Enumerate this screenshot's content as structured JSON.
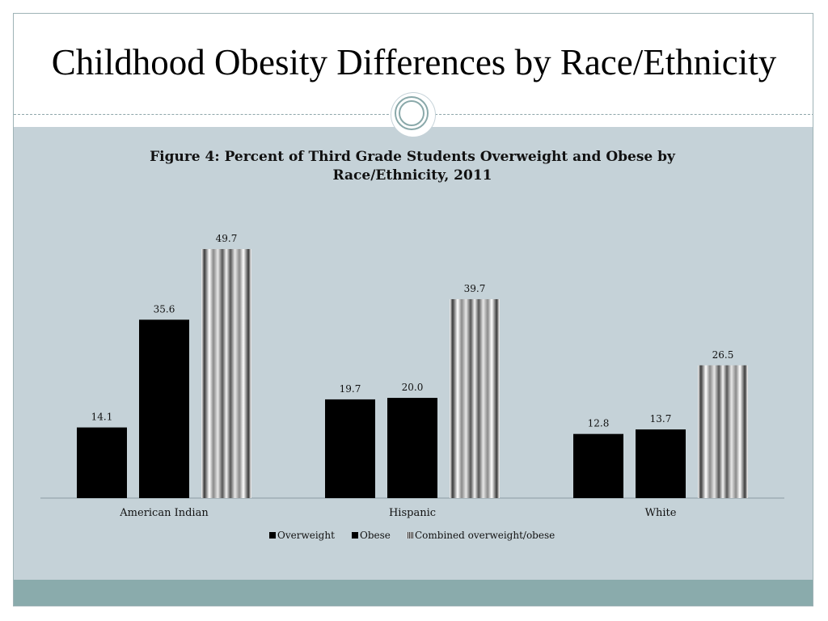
{
  "slide": {
    "title": "Childhood Obesity Differences by Race/Ethnicity"
  },
  "colors": {
    "content_bg": "#c5d2d8",
    "footer_bar": "#8aabac",
    "bar_black": "#000000"
  },
  "chart_data": {
    "type": "bar",
    "title_lines": [
      "Figure 4:  Percent of Third Grade Students Overweight and Obese by",
      "Race/Ethnicity, 2011"
    ],
    "categories": [
      "American Indian",
      "Hispanic",
      "White"
    ],
    "series": [
      {
        "name": "Overweight",
        "values": [
          14.1,
          19.7,
          12.8
        ],
        "fill": "solid-black"
      },
      {
        "name": "Obese",
        "values": [
          35.6,
          20.0,
          13.7
        ],
        "fill": "solid-black"
      },
      {
        "name": "Combined overweight/obese",
        "values": [
          49.7,
          39.7,
          26.5
        ],
        "fill": "striped-gray"
      }
    ],
    "value_labels": [
      [
        "14.1",
        "19.7",
        "12.8"
      ],
      [
        "35.6",
        "20.0",
        "13.7"
      ],
      [
        "49.7",
        "39.7",
        "26.5"
      ]
    ],
    "ylim": [
      0,
      50
    ],
    "grid": false,
    "legend_position": "bottom"
  }
}
